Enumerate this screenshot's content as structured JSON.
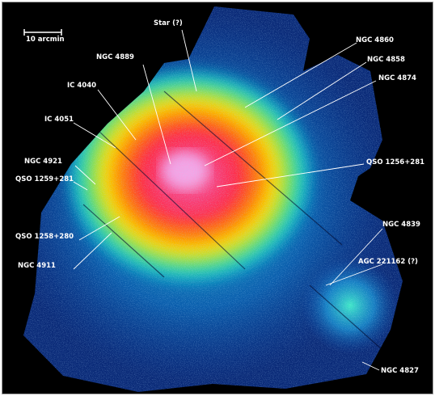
{
  "image": {
    "scale_bar_label": "10 arcmin",
    "labels": {
      "star": "Star (?)",
      "ngc4860": "NGC 4860",
      "ngc4889": "NGC 4889",
      "ngc4858": "NGC 4858",
      "ic4040": "IC 4040",
      "ngc4874": "NGC 4874",
      "ic4051": "IC 4051",
      "ngc4921": "NGC 4921",
      "qso1256": "QSO 1256+281",
      "qso1259": "QSO 1259+281",
      "qso1258": "QSO 1258+280",
      "ngc4839": "NGC 4839",
      "ngc4911": "NGC 4911",
      "agc221162": "AGC 221162 (?)",
      "ngc4827": "NGC 4827"
    }
  }
}
